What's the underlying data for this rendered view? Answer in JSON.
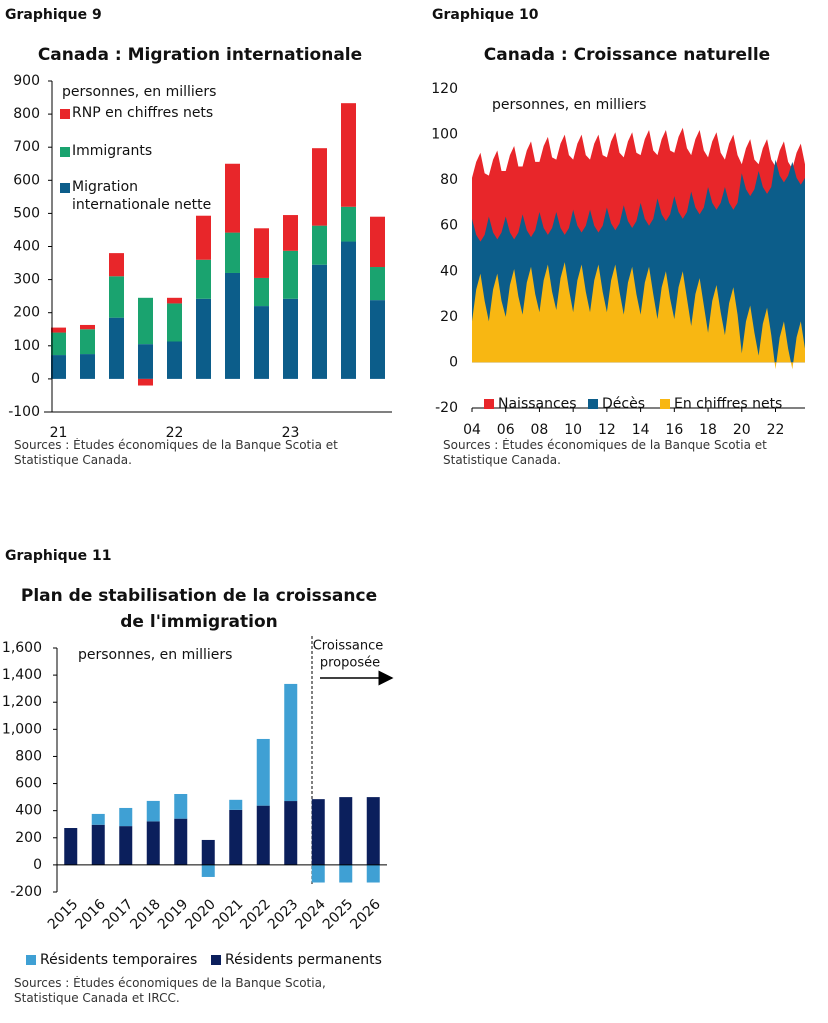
{
  "chart_data": [
    {
      "type": "bar",
      "caption": "Graphique 9",
      "title": "Canada : Migration internationale",
      "unit_label": "personnes, en milliers",
      "categories": [
        "21",
        null,
        null,
        null,
        "22",
        null,
        null,
        null,
        "23",
        null,
        null,
        null
      ],
      "series": [
        {
          "name": "RNP en chiffres nets",
          "color": "#e8262a",
          "values": [
            15,
            13,
            70,
            -20,
            17,
            133,
            208,
            150,
            108,
            234,
            313,
            152
          ]
        },
        {
          "name": "Immigrants",
          "color": "#1aa36f",
          "values": [
            68,
            75,
            125,
            140,
            115,
            118,
            122,
            85,
            145,
            118,
            105,
            100
          ]
        },
        {
          "name": "Migration internationale nette",
          "color": "#0c5d8a",
          "values": [
            72,
            75,
            185,
            105,
            113,
            242,
            320,
            220,
            242,
            345,
            415,
            238
          ]
        }
      ],
      "ylim": [
        -100,
        900
      ],
      "yticks": [
        -100,
        0,
        100,
        200,
        300,
        400,
        500,
        600,
        700,
        800,
        900
      ],
      "source": "Sources : Études économiques de la Banque Scotia et Statistique Canada."
    },
    {
      "type": "area",
      "caption": "Graphique 10",
      "title": "Canada : Croissance naturelle",
      "unit_label": "personnes, en milliers",
      "categories": [
        "04",
        null,
        null,
        null,
        null,
        null,
        null,
        null,
        "06",
        null,
        null,
        null,
        null,
        null,
        null,
        null,
        "08",
        null,
        null,
        null,
        null,
        null,
        null,
        null,
        "10",
        null,
        null,
        null,
        null,
        null,
        null,
        null,
        "12",
        null,
        null,
        null,
        null,
        null,
        null,
        null,
        "14",
        null,
        null,
        null,
        null,
        null,
        null,
        null,
        "16",
        null,
        null,
        null,
        null,
        null,
        null,
        null,
        "18",
        null,
        null,
        null,
        null,
        null,
        null,
        null,
        "20",
        null,
        null,
        null,
        null,
        null,
        null,
        null,
        "22",
        null,
        null,
        null,
        null,
        null,
        null,
        null
      ],
      "series": [
        {
          "name": "Naissances",
          "color": "#e8262a",
          "values": [
            81,
            88,
            92,
            83,
            82,
            89,
            93,
            84,
            84,
            91,
            95,
            86,
            86,
            93,
            97,
            88,
            88,
            95,
            99,
            90,
            89,
            96,
            100,
            91,
            89,
            96,
            100,
            91,
            89,
            96,
            100,
            91,
            90,
            97,
            101,
            92,
            90,
            97,
            101,
            92,
            91,
            98,
            102,
            93,
            91,
            98,
            102,
            93,
            92,
            99,
            103,
            94,
            91,
            98,
            102,
            93,
            90,
            97,
            101,
            92,
            89,
            96,
            100,
            91,
            87,
            94,
            98,
            89,
            87,
            94,
            98,
            89,
            86,
            93,
            97,
            88,
            85,
            92,
            96,
            87
          ]
        },
        {
          "name": "Décès",
          "color": "#0c5d8a",
          "values": [
            63,
            56,
            53,
            56,
            64,
            57,
            54,
            57,
            64,
            57,
            54,
            57,
            65,
            58,
            55,
            58,
            66,
            59,
            56,
            59,
            66,
            59,
            56,
            59,
            67,
            60,
            57,
            60,
            67,
            60,
            57,
            60,
            68,
            61,
            58,
            61,
            69,
            62,
            59,
            62,
            70,
            63,
            60,
            63,
            72,
            65,
            62,
            65,
            73,
            66,
            63,
            66,
            75,
            68,
            65,
            68,
            77,
            70,
            67,
            70,
            77,
            70,
            67,
            70,
            83,
            76,
            73,
            76,
            84,
            77,
            74,
            77,
            89,
            82,
            79,
            82,
            88,
            81,
            78,
            81
          ]
        },
        {
          "name": "En chiffres nets",
          "color": "#f8b712",
          "values": [
            18,
            32,
            39,
            27,
            18,
            32,
            39,
            27,
            20,
            34,
            41,
            29,
            21,
            35,
            42,
            30,
            22,
            36,
            43,
            31,
            23,
            37,
            44,
            32,
            22,
            36,
            43,
            31,
            22,
            36,
            43,
            31,
            22,
            36,
            43,
            31,
            21,
            35,
            42,
            30,
            21,
            35,
            42,
            30,
            19,
            33,
            40,
            28,
            19,
            33,
            40,
            28,
            16,
            30,
            37,
            25,
            13,
            27,
            34,
            22,
            12,
            26,
            33,
            21,
            4,
            18,
            25,
            13,
            3,
            17,
            24,
            12,
            -3,
            11,
            18,
            6,
            -3,
            11,
            18,
            6
          ]
        }
      ],
      "ylim": [
        -20,
        120
      ],
      "yticks": [
        -20,
        0,
        20,
        40,
        60,
        80,
        100,
        120
      ],
      "source": "Sources : Études économiques de la Banque Scotia et Statistique Canada."
    },
    {
      "type": "bar",
      "caption": "Graphique 11",
      "title": [
        "Plan de stabilisation de la croissance",
        "de l'immigration"
      ],
      "unit_label": "personnes, en milliers",
      "annotation": [
        "Croissance",
        "proposée"
      ],
      "categories": [
        "2015",
        "2016",
        "2017",
        "2018",
        "2019",
        "2020",
        "2021",
        "2022",
        "2023",
        "2024",
        "2025",
        "2026"
      ],
      "series": [
        {
          "name": "Résidents temporaires",
          "color": "#3fa0d4",
          "values": [
            0,
            80,
            134,
            151,
            182,
            -89,
            74,
            492,
            864,
            -130,
            -130,
            -130
          ]
        },
        {
          "name": "Résidents permanents",
          "color": "#0b1f5c",
          "values": [
            272,
            296,
            286,
            321,
            341,
            184,
            406,
            437,
            471,
            485,
            500,
            500
          ]
        }
      ],
      "ylim": [
        -200,
        1600
      ],
      "yticks": [
        -200,
        0,
        200,
        400,
        600,
        800,
        {
          "value": 1000,
          "label": "1,000"
        },
        {
          "value": 1200,
          "label": "1,200"
        },
        {
          "value": 1400,
          "label": "1,400"
        },
        {
          "value": 1600,
          "label": "1,600"
        }
      ],
      "source": "Sources : Études économiques de la Banque Scotia, Statistique Canada et IRCC."
    }
  ]
}
